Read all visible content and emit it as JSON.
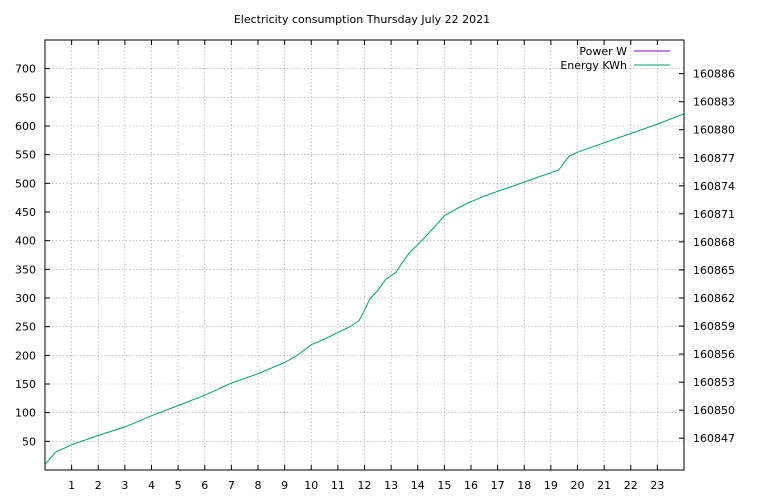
{
  "chart_data": {
    "type": "line",
    "title": "Electricity consumption Thursday July 22 2021",
    "xlabel": "",
    "ylabel": "",
    "xlim": [
      0,
      24
    ],
    "ylim": [
      0,
      750
    ],
    "y2lim": [
      160843.6,
      160889.6
    ],
    "grid": true,
    "legend_position": "top-right",
    "x_ticks": [
      "1",
      "2",
      "3",
      "4",
      "5",
      "6",
      "7",
      "8",
      "9",
      "10",
      "11",
      "12",
      "13",
      "14",
      "15",
      "16",
      "17",
      "18",
      "19",
      "20",
      "21",
      "22",
      "23"
    ],
    "y_ticks": [
      "50",
      "100",
      "150",
      "200",
      "250",
      "300",
      "350",
      "400",
      "450",
      "500",
      "550",
      "600",
      "650",
      "700"
    ],
    "y2_ticks": [
      "160847",
      "160850",
      "160853",
      "160856",
      "160859",
      "160862",
      "160865",
      "160868",
      "160871",
      "160874",
      "160877",
      "160880",
      "160883",
      "160886"
    ],
    "colors": {
      "power": "#9400d3",
      "energy": "#009e73"
    },
    "series": [
      {
        "name": "Power W",
        "axis": "y",
        "x": [],
        "values": []
      },
      {
        "name": "Energy KWh",
        "axis": "y2",
        "x": [
          0,
          0.4,
          1.0,
          2.0,
          3.0,
          4.0,
          5.0,
          6.0,
          7.0,
          8.0,
          9.0,
          9.5,
          10.0,
          10.5,
          11.0,
          11.5,
          11.8,
          12.0,
          12.2,
          12.5,
          12.8,
          13.0,
          13.2,
          13.4,
          13.7,
          14.0,
          14.3,
          14.6,
          15.0,
          15.3,
          15.7,
          16.0,
          16.5,
          17.0,
          17.5,
          18.0,
          18.5,
          19.0,
          19.3,
          19.5,
          19.7,
          20.0,
          21.0,
          22.0,
          23.0,
          24.0
        ],
        "values": [
          160844.2,
          160845.5,
          160846.3,
          160847.3,
          160848.2,
          160849.4,
          160850.5,
          160851.6,
          160852.9,
          160853.9,
          160855.1,
          160855.9,
          160857.0,
          160857.6,
          160858.3,
          160859.0,
          160859.6,
          160860.7,
          160861.9,
          160862.8,
          160864.0,
          160864.4,
          160864.8,
          160865.7,
          160866.9,
          160867.7,
          160868.6,
          160869.5,
          160870.8,
          160871.3,
          160871.9,
          160872.3,
          160872.9,
          160873.4,
          160873.9,
          160874.4,
          160874.9,
          160875.4,
          160875.7,
          160876.5,
          160877.2,
          160877.6,
          160878.6,
          160879.6,
          160880.6,
          160881.7
        ]
      }
    ]
  }
}
